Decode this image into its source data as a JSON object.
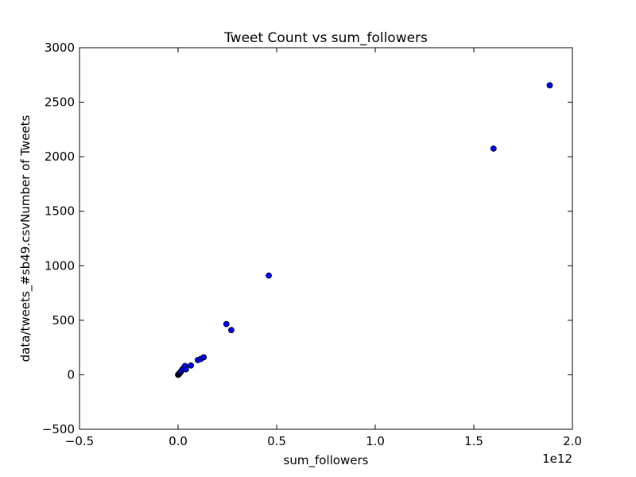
{
  "chart_data": {
    "type": "scatter",
    "title": "Tweet Count vs sum_followers",
    "xlabel": "sum_followers",
    "ylabel": "data/tweets_#sb49.csvNumber of Tweets",
    "x_offset_label": "1e12",
    "xlim": [
      -0.5,
      2.0
    ],
    "ylim": [
      -500,
      3000
    ],
    "x_unit_multiplier": 1000000000000,
    "xticks": [
      -0.5,
      0.0,
      0.5,
      1.0,
      1.5,
      2.0
    ],
    "xtick_labels": [
      "−0.5",
      "0.0",
      "0.5",
      "1.0",
      "1.5",
      "2.0"
    ],
    "yticks": [
      -500,
      0,
      500,
      1000,
      1500,
      2000,
      2500,
      3000
    ],
    "ytick_labels": [
      "−500",
      "0",
      "500",
      "1000",
      "1500",
      "2000",
      "2500",
      "3000"
    ],
    "grid": false,
    "marker_color": "#0000ff",
    "points": [
      {
        "x": 0.0,
        "y": 0
      },
      {
        "x": 0.002,
        "y": 2
      },
      {
        "x": 0.004,
        "y": 5
      },
      {
        "x": 0.006,
        "y": 10
      },
      {
        "x": 0.008,
        "y": 15
      },
      {
        "x": 0.01,
        "y": 20
      },
      {
        "x": 0.013,
        "y": 25
      },
      {
        "x": 0.016,
        "y": 35
      },
      {
        "x": 0.02,
        "y": 45
      },
      {
        "x": 0.025,
        "y": 55
      },
      {
        "x": 0.03,
        "y": 65
      },
      {
        "x": 0.035,
        "y": 80
      },
      {
        "x": 0.04,
        "y": 50
      },
      {
        "x": 0.065,
        "y": 85
      },
      {
        "x": 0.1,
        "y": 135
      },
      {
        "x": 0.115,
        "y": 145
      },
      {
        "x": 0.13,
        "y": 160
      },
      {
        "x": 0.245,
        "y": 465
      },
      {
        "x": 0.27,
        "y": 410
      },
      {
        "x": 0.46,
        "y": 910
      },
      {
        "x": 1.6,
        "y": 2075
      },
      {
        "x": 1.885,
        "y": 2655
      }
    ]
  }
}
